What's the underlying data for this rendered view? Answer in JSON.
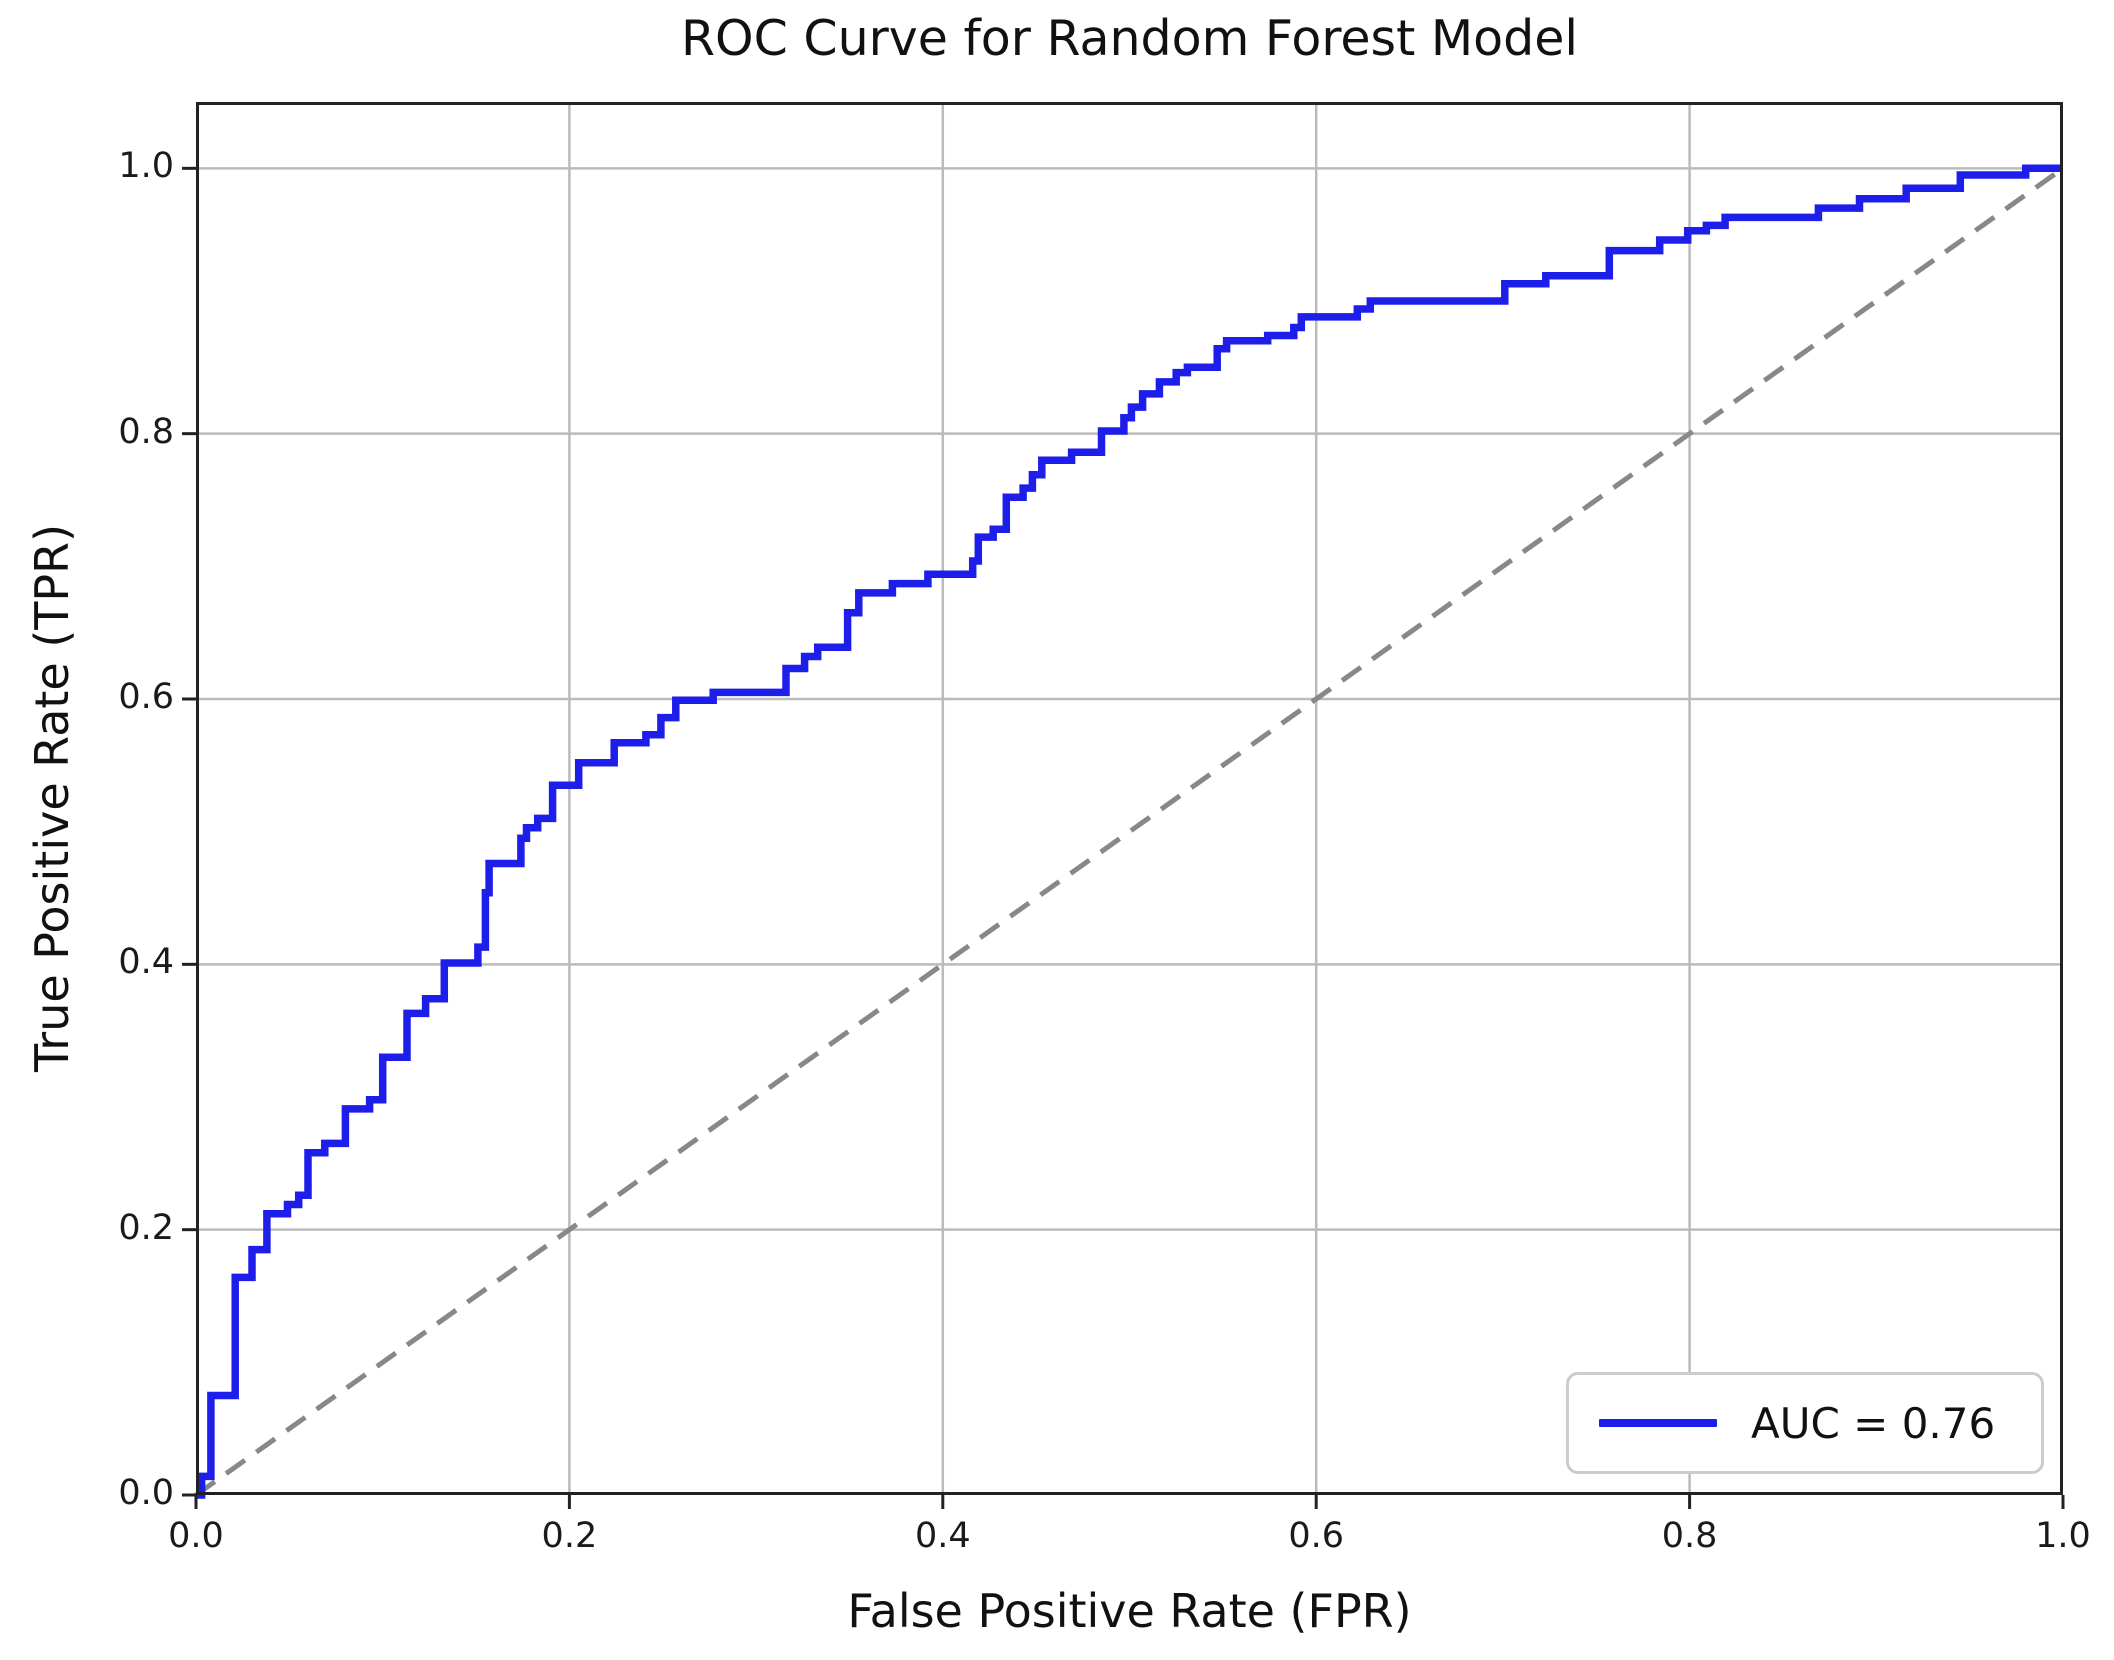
{
  "chart_data": {
    "type": "line",
    "title": "ROC Curve for Random Forest Model",
    "xlabel": "False Positive Rate (FPR)",
    "ylabel": "True Positive Rate (TPR)",
    "xlim": [
      0.0,
      1.0
    ],
    "ylim": [
      0.0,
      1.05
    ],
    "grid": true,
    "x_tick_values": [
      0.0,
      0.2,
      0.4,
      0.6,
      0.8,
      1.0
    ],
    "x_tick_labels": [
      "0.0",
      "0.2",
      "0.4",
      "0.6",
      "0.8",
      "1.0"
    ],
    "y_tick_values": [
      0.0,
      0.2,
      0.4,
      0.6,
      0.8,
      1.0
    ],
    "y_tick_labels": [
      "0.0",
      "0.2",
      "0.4",
      "0.6",
      "0.8",
      "1.0"
    ],
    "auc": 0.76,
    "legend": {
      "label": "AUC = 0.76",
      "position": "lower right"
    },
    "colors": {
      "roc_curve": "#1e1eeb",
      "chance_line": "#888888",
      "grid": "#bbbbbb",
      "spine": "#222222",
      "text": "#111111"
    },
    "series": [
      {
        "name": "roc-curve",
        "color": "#1e1eeb",
        "style": "solid",
        "width": 7.5,
        "points": [
          [
            0.0,
            0.0
          ],
          [
            0.003,
            0.0
          ],
          [
            0.003,
            0.014
          ],
          [
            0.008,
            0.014
          ],
          [
            0.008,
            0.075
          ],
          [
            0.021,
            0.075
          ],
          [
            0.021,
            0.164
          ],
          [
            0.03,
            0.164
          ],
          [
            0.03,
            0.185
          ],
          [
            0.038,
            0.185
          ],
          [
            0.038,
            0.212
          ],
          [
            0.049,
            0.212
          ],
          [
            0.049,
            0.219
          ],
          [
            0.055,
            0.219
          ],
          [
            0.055,
            0.226
          ],
          [
            0.06,
            0.226
          ],
          [
            0.06,
            0.258
          ],
          [
            0.069,
            0.258
          ],
          [
            0.069,
            0.265
          ],
          [
            0.08,
            0.265
          ],
          [
            0.08,
            0.291
          ],
          [
            0.093,
            0.291
          ],
          [
            0.093,
            0.298
          ],
          [
            0.1,
            0.298
          ],
          [
            0.1,
            0.33
          ],
          [
            0.113,
            0.33
          ],
          [
            0.113,
            0.363
          ],
          [
            0.123,
            0.363
          ],
          [
            0.123,
            0.374
          ],
          [
            0.133,
            0.374
          ],
          [
            0.133,
            0.401
          ],
          [
            0.151,
            0.401
          ],
          [
            0.151,
            0.413
          ],
          [
            0.155,
            0.413
          ],
          [
            0.155,
            0.454
          ],
          [
            0.157,
            0.454
          ],
          [
            0.157,
            0.476
          ],
          [
            0.174,
            0.476
          ],
          [
            0.174,
            0.495
          ],
          [
            0.177,
            0.495
          ],
          [
            0.177,
            0.503
          ],
          [
            0.183,
            0.503
          ],
          [
            0.183,
            0.51
          ],
          [
            0.191,
            0.51
          ],
          [
            0.191,
            0.535
          ],
          [
            0.205,
            0.535
          ],
          [
            0.205,
            0.552
          ],
          [
            0.224,
            0.552
          ],
          [
            0.224,
            0.567
          ],
          [
            0.241,
            0.567
          ],
          [
            0.241,
            0.573
          ],
          [
            0.249,
            0.573
          ],
          [
            0.249,
            0.586
          ],
          [
            0.257,
            0.586
          ],
          [
            0.257,
            0.599
          ],
          [
            0.277,
            0.599
          ],
          [
            0.277,
            0.605
          ],
          [
            0.316,
            0.605
          ],
          [
            0.316,
            0.623
          ],
          [
            0.326,
            0.623
          ],
          [
            0.326,
            0.632
          ],
          [
            0.333,
            0.632
          ],
          [
            0.333,
            0.639
          ],
          [
            0.349,
            0.639
          ],
          [
            0.349,
            0.665
          ],
          [
            0.355,
            0.665
          ],
          [
            0.355,
            0.68
          ],
          [
            0.373,
            0.68
          ],
          [
            0.373,
            0.687
          ],
          [
            0.392,
            0.687
          ],
          [
            0.392,
            0.694
          ],
          [
            0.416,
            0.694
          ],
          [
            0.416,
            0.704
          ],
          [
            0.419,
            0.704
          ],
          [
            0.419,
            0.722
          ],
          [
            0.427,
            0.722
          ],
          [
            0.427,
            0.728
          ],
          [
            0.434,
            0.728
          ],
          [
            0.434,
            0.752
          ],
          [
            0.443,
            0.752
          ],
          [
            0.443,
            0.759
          ],
          [
            0.448,
            0.759
          ],
          [
            0.448,
            0.769
          ],
          [
            0.453,
            0.769
          ],
          [
            0.453,
            0.78
          ],
          [
            0.469,
            0.78
          ],
          [
            0.469,
            0.786
          ],
          [
            0.485,
            0.786
          ],
          [
            0.485,
            0.802
          ],
          [
            0.497,
            0.802
          ],
          [
            0.497,
            0.812
          ],
          [
            0.501,
            0.812
          ],
          [
            0.501,
            0.82
          ],
          [
            0.507,
            0.82
          ],
          [
            0.507,
            0.83
          ],
          [
            0.516,
            0.83
          ],
          [
            0.516,
            0.839
          ],
          [
            0.525,
            0.839
          ],
          [
            0.525,
            0.846
          ],
          [
            0.531,
            0.846
          ],
          [
            0.531,
            0.85
          ],
          [
            0.547,
            0.85
          ],
          [
            0.547,
            0.864
          ],
          [
            0.552,
            0.864
          ],
          [
            0.552,
            0.87
          ],
          [
            0.574,
            0.87
          ],
          [
            0.574,
            0.874
          ],
          [
            0.588,
            0.874
          ],
          [
            0.588,
            0.88
          ],
          [
            0.592,
            0.88
          ],
          [
            0.592,
            0.888
          ],
          [
            0.622,
            0.888
          ],
          [
            0.622,
            0.894
          ],
          [
            0.629,
            0.894
          ],
          [
            0.629,
            0.9
          ],
          [
            0.701,
            0.9
          ],
          [
            0.701,
            0.913
          ],
          [
            0.723,
            0.913
          ],
          [
            0.723,
            0.919
          ],
          [
            0.757,
            0.919
          ],
          [
            0.757,
            0.938
          ],
          [
            0.784,
            0.938
          ],
          [
            0.784,
            0.946
          ],
          [
            0.799,
            0.946
          ],
          [
            0.799,
            0.953
          ],
          [
            0.809,
            0.953
          ],
          [
            0.809,
            0.957
          ],
          [
            0.819,
            0.957
          ],
          [
            0.819,
            0.963
          ],
          [
            0.869,
            0.963
          ],
          [
            0.869,
            0.97
          ],
          [
            0.891,
            0.97
          ],
          [
            0.891,
            0.977
          ],
          [
            0.916,
            0.977
          ],
          [
            0.916,
            0.985
          ],
          [
            0.945,
            0.985
          ],
          [
            0.945,
            0.995
          ],
          [
            0.98,
            0.995
          ],
          [
            0.98,
            1.0
          ],
          [
            1.0,
            1.0
          ]
        ]
      },
      {
        "name": "chance-diagonal",
        "color": "#888888",
        "style": "dashed",
        "width": 5,
        "points": [
          [
            0.0,
            0.0
          ],
          [
            1.0,
            1.0
          ]
        ]
      }
    ]
  }
}
